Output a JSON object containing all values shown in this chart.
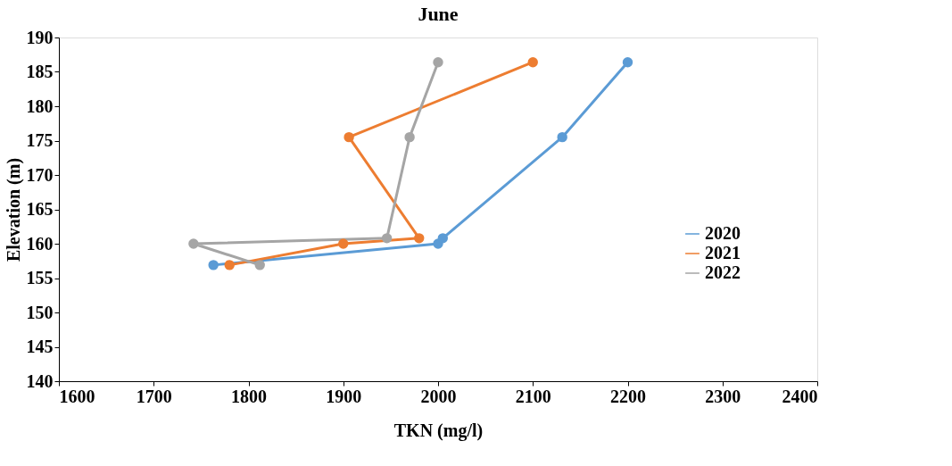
{
  "chart_data": {
    "type": "line",
    "title": "June",
    "xlabel": "TKN (mg/l)",
    "ylabel": "Elevation (m)",
    "xlim": [
      1600,
      2400
    ],
    "xticks": [
      1600,
      1700,
      1800,
      1900,
      2000,
      2100,
      2200,
      2300,
      2400
    ],
    "ylim": [
      140,
      190
    ],
    "yticks": [
      140,
      145,
      150,
      155,
      160,
      165,
      170,
      175,
      180,
      185,
      190
    ],
    "grid": false,
    "legend": "right",
    "marker": "circle",
    "line_style": "solid",
    "series": [
      {
        "name": "2020",
        "color": "#5b9bd5",
        "x": [
          1763,
          2000,
          2005,
          2131,
          2200
        ],
        "values": [
          156.9,
          160,
          160.8,
          175.5,
          186.4
        ]
      },
      {
        "name": "2021",
        "color": "#ed7d31",
        "x": [
          1780,
          1900,
          1980,
          1906,
          2100
        ],
        "values": [
          156.9,
          160,
          160.8,
          175.5,
          186.4
        ]
      },
      {
        "name": "2022",
        "color": "#a5a5a5",
        "x": [
          1812,
          1742,
          1946,
          1970,
          2000
        ],
        "values": [
          156.9,
          160,
          160.8,
          175.5,
          186.4
        ]
      }
    ]
  }
}
